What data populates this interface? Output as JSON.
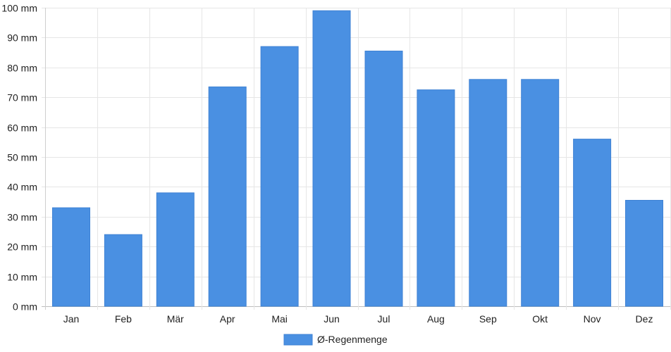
{
  "chart_data": {
    "type": "bar",
    "categories": [
      "Jan",
      "Feb",
      "Mär",
      "Apr",
      "Mai",
      "Jun",
      "Jul",
      "Aug",
      "Sep",
      "Okt",
      "Nov",
      "Dez"
    ],
    "series": [
      {
        "name": "Ø-Regenmenge",
        "values": [
          33,
          24,
          38,
          73.5,
          87,
          99,
          85.5,
          72.5,
          76,
          76,
          56,
          35.5
        ],
        "color": "#4a90e2"
      }
    ],
    "ylim": [
      0,
      100
    ],
    "yticks": [
      0,
      10,
      20,
      30,
      40,
      50,
      60,
      70,
      80,
      90,
      100
    ],
    "ytick_unit": "mm",
    "grid": true,
    "legend_position": "bottom-center",
    "title": "",
    "xlabel": "",
    "ylabel": ""
  }
}
